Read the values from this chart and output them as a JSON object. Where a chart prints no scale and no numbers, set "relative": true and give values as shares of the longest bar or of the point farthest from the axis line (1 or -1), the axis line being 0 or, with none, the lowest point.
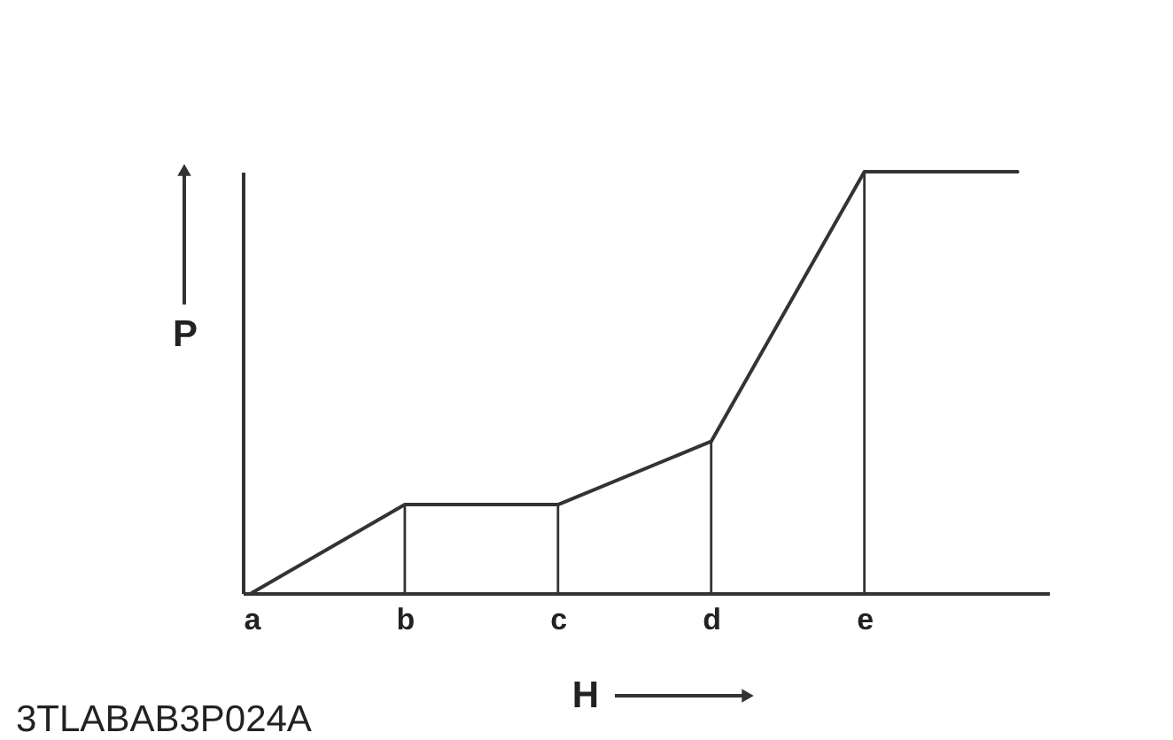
{
  "chart_data": {
    "type": "line",
    "relative": true,
    "xlabel": "H",
    "ylabel": "P",
    "categories": [
      "a",
      "b",
      "c",
      "d",
      "e",
      null
    ],
    "series": [
      {
        "color": "#333333",
        "values": [
          0,
          0.21,
          0.21,
          0.36,
          1,
          1
        ]
      },
      {
        "type": "bar",
        "color": "#333333",
        "values": [
          null,
          0.21,
          0.21,
          0.36,
          1,
          null
        ]
      }
    ],
    "annotations": [
      "3TLABAB3P024A"
    ]
  }
}
